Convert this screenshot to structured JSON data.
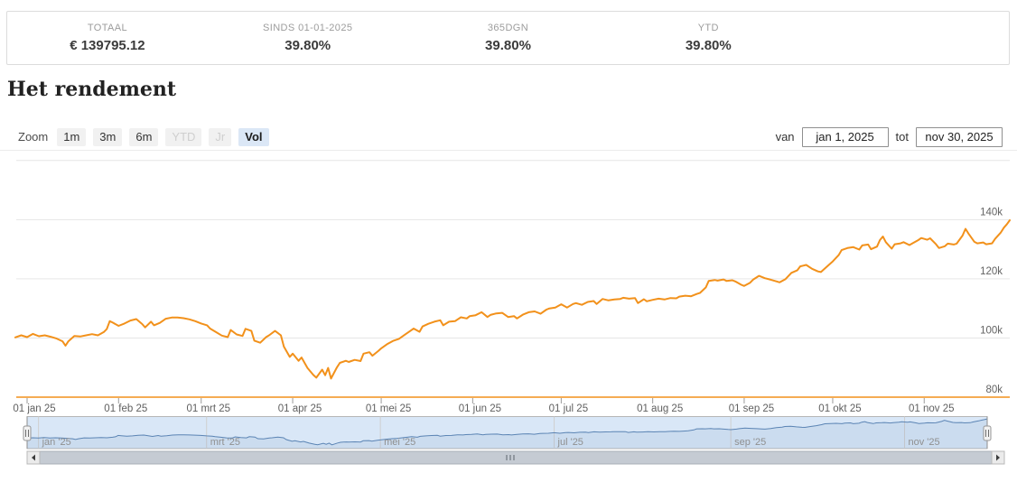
{
  "stats": {
    "items": [
      {
        "label": "TOTAAL",
        "value": "€ 139795.12"
      },
      {
        "label": "SINDS 01-01-2025",
        "value": "39.80%"
      },
      {
        "label": "365DGN",
        "value": "39.80%"
      },
      {
        "label": "YTD",
        "value": "39.80%"
      }
    ]
  },
  "title": "Het rendement",
  "range_selector": {
    "zoom_label": "Zoom",
    "buttons": [
      {
        "label": "1m",
        "state": "normal"
      },
      {
        "label": "3m",
        "state": "normal"
      },
      {
        "label": "6m",
        "state": "normal"
      },
      {
        "label": "YTD",
        "state": "disabled"
      },
      {
        "label": "Jr",
        "state": "disabled"
      },
      {
        "label": "Vol",
        "state": "selected"
      }
    ],
    "from_label": "van",
    "from_value": "jan 1, 2025",
    "to_label": "tot",
    "to_value": "nov 30, 2025"
  },
  "chart_data": {
    "type": "line",
    "title": "Het rendement",
    "unit": "EUR (k)",
    "x_unit": "day offset from 2025-01-01",
    "xrange": [
      "jan 1, 2025",
      "nov 30, 2025"
    ],
    "ylim": [
      80,
      160
    ],
    "grid": "horizontal",
    "legend": "none",
    "series_color": "#f2911b",
    "yticks": [
      {
        "label": "",
        "value": 160
      },
      {
        "label": "140k",
        "value": 140
      },
      {
        "label": "120k",
        "value": 120
      },
      {
        "label": "100k",
        "value": 100
      },
      {
        "label": "80k",
        "value": 80
      }
    ],
    "xticks": [
      {
        "label": "01 jan 25",
        "day": 0
      },
      {
        "label": "01 feb 25",
        "day": 31
      },
      {
        "label": "01 mrt 25",
        "day": 59
      },
      {
        "label": "01 apr 25",
        "day": 90
      },
      {
        "label": "01 mei 25",
        "day": 120
      },
      {
        "label": "01 jun 25",
        "day": 151
      },
      {
        "label": "01 jul 25",
        "day": 181
      },
      {
        "label": "01 aug 25",
        "day": 212
      },
      {
        "label": "01 sep 25",
        "day": 243
      },
      {
        "label": "01 okt 25",
        "day": 273
      },
      {
        "label": "01 nov 25",
        "day": 304
      }
    ],
    "navigator": {
      "line_color": "#5b84b4",
      "mask_color": "#d9e7f7",
      "labels": [
        {
          "label": "jan '25",
          "day": 0
        },
        {
          "label": "mrt '25",
          "day": 59
        },
        {
          "label": "mei '25",
          "day": 120
        },
        {
          "label": "jul '25",
          "day": 181
        },
        {
          "label": "sep '25",
          "day": 243
        },
        {
          "label": "nov '25",
          "day": 304
        }
      ]
    },
    "points": [
      [
        -4,
        100.2
      ],
      [
        -2,
        100.9
      ],
      [
        0,
        100.3
      ],
      [
        2,
        101.4
      ],
      [
        4,
        100.6
      ],
      [
        6,
        100.9
      ],
      [
        8,
        100.4
      ],
      [
        10,
        99.8
      ],
      [
        12,
        98.9
      ],
      [
        13,
        97.4
      ],
      [
        14,
        98.9
      ],
      [
        16,
        100.7
      ],
      [
        18,
        100.5
      ],
      [
        20,
        100.9
      ],
      [
        22,
        101.3
      ],
      [
        24,
        100.9
      ],
      [
        26,
        102.0
      ],
      [
        27,
        103.0
      ],
      [
        28,
        105.7
      ],
      [
        29,
        105.2
      ],
      [
        31,
        104.1
      ],
      [
        33,
        104.9
      ],
      [
        35,
        105.9
      ],
      [
        37,
        106.4
      ],
      [
        39,
        104.7
      ],
      [
        40,
        103.6
      ],
      [
        42,
        105.5
      ],
      [
        43,
        104.3
      ],
      [
        45,
        105.1
      ],
      [
        47,
        106.5
      ],
      [
        49,
        106.9
      ],
      [
        51,
        106.9
      ],
      [
        53,
        106.7
      ],
      [
        55,
        106.3
      ],
      [
        57,
        105.7
      ],
      [
        59,
        104.9
      ],
      [
        61,
        104.3
      ],
      [
        62,
        103.2
      ],
      [
        64,
        102.0
      ],
      [
        66,
        100.8
      ],
      [
        68,
        100.3
      ],
      [
        69,
        102.7
      ],
      [
        71,
        101.2
      ],
      [
        73,
        100.7
      ],
      [
        74,
        103.1
      ],
      [
        76,
        102.4
      ],
      [
        77,
        99.1
      ],
      [
        79,
        98.4
      ],
      [
        81,
        100.3
      ],
      [
        82,
        100.9
      ],
      [
        84,
        102.4
      ],
      [
        86,
        100.9
      ],
      [
        87,
        97.1
      ],
      [
        89,
        93.6
      ],
      [
        90,
        94.7
      ],
      [
        92,
        92.3
      ],
      [
        93,
        93.4
      ],
      [
        95,
        89.9
      ],
      [
        97,
        87.5
      ],
      [
        98,
        86.6
      ],
      [
        100,
        89.3
      ],
      [
        101,
        87.4
      ],
      [
        102,
        89.9
      ],
      [
        103,
        86.3
      ],
      [
        105,
        90.1
      ],
      [
        106,
        91.6
      ],
      [
        108,
        92.3
      ],
      [
        109,
        91.9
      ],
      [
        111,
        92.6
      ],
      [
        113,
        92.2
      ],
      [
        114,
        94.7
      ],
      [
        116,
        95.2
      ],
      [
        117,
        94.0
      ],
      [
        119,
        95.6
      ],
      [
        120,
        96.5
      ],
      [
        122,
        97.9
      ],
      [
        124,
        99.0
      ],
      [
        126,
        99.7
      ],
      [
        128,
        101.1
      ],
      [
        130,
        102.5
      ],
      [
        131,
        103.2
      ],
      [
        133,
        102.1
      ],
      [
        134,
        103.9
      ],
      [
        136,
        104.8
      ],
      [
        138,
        105.5
      ],
      [
        140,
        106.0
      ],
      [
        141,
        104.3
      ],
      [
        143,
        105.5
      ],
      [
        145,
        105.7
      ],
      [
        147,
        107.0
      ],
      [
        149,
        106.6
      ],
      [
        150,
        107.4
      ],
      [
        152,
        107.7
      ],
      [
        154,
        108.7
      ],
      [
        156,
        107.1
      ],
      [
        157,
        107.8
      ],
      [
        159,
        108.3
      ],
      [
        161,
        108.5
      ],
      [
        163,
        107.1
      ],
      [
        165,
        107.4
      ],
      [
        166,
        106.6
      ],
      [
        168,
        107.9
      ],
      [
        170,
        108.7
      ],
      [
        172,
        109.0
      ],
      [
        174,
        108.2
      ],
      [
        176,
        109.6
      ],
      [
        177,
        110.0
      ],
      [
        179,
        110.3
      ],
      [
        181,
        111.4
      ],
      [
        183,
        110.3
      ],
      [
        185,
        111.5
      ],
      [
        186,
        111.8
      ],
      [
        188,
        111.2
      ],
      [
        190,
        112.2
      ],
      [
        192,
        112.5
      ],
      [
        193,
        111.5
      ],
      [
        195,
        113.2
      ],
      [
        197,
        112.7
      ],
      [
        199,
        113.0
      ],
      [
        201,
        113.2
      ],
      [
        202,
        113.6
      ],
      [
        204,
        113.3
      ],
      [
        206,
        113.5
      ],
      [
        207,
        111.8
      ],
      [
        209,
        113.1
      ],
      [
        210,
        112.4
      ],
      [
        212,
        112.9
      ],
      [
        214,
        113.3
      ],
      [
        216,
        113.0
      ],
      [
        218,
        113.5
      ],
      [
        220,
        113.4
      ],
      [
        221,
        114.0
      ],
      [
        223,
        114.3
      ],
      [
        225,
        114.1
      ],
      [
        227,
        114.9
      ],
      [
        228,
        115.2
      ],
      [
        230,
        117.1
      ],
      [
        231,
        119.3
      ],
      [
        233,
        119.6
      ],
      [
        234,
        119.4
      ],
      [
        236,
        119.8
      ],
      [
        237,
        119.3
      ],
      [
        239,
        119.5
      ],
      [
        240,
        119.1
      ],
      [
        242,
        118.0
      ],
      [
        243,
        117.6
      ],
      [
        245,
        118.7
      ],
      [
        246,
        119.7
      ],
      [
        248,
        121.0
      ],
      [
        250,
        120.2
      ],
      [
        252,
        119.7
      ],
      [
        254,
        119.1
      ],
      [
        255,
        118.8
      ],
      [
        257,
        119.9
      ],
      [
        259,
        122.0
      ],
      [
        261,
        122.9
      ],
      [
        262,
        124.2
      ],
      [
        264,
        124.7
      ],
      [
        266,
        123.4
      ],
      [
        268,
        122.5
      ],
      [
        269,
        122.3
      ],
      [
        271,
        124.1
      ],
      [
        273,
        125.9
      ],
      [
        275,
        128.0
      ],
      [
        276,
        129.7
      ],
      [
        278,
        130.4
      ],
      [
        280,
        130.7
      ],
      [
        282,
        129.9
      ],
      [
        283,
        131.3
      ],
      [
        285,
        131.6
      ],
      [
        286,
        130.0
      ],
      [
        288,
        130.9
      ],
      [
        289,
        133.1
      ],
      [
        290,
        134.3
      ],
      [
        291,
        132.4
      ],
      [
        293,
        130.2
      ],
      [
        294,
        131.7
      ],
      [
        296,
        132.0
      ],
      [
        297,
        132.4
      ],
      [
        299,
        131.4
      ],
      [
        300,
        132.0
      ],
      [
        302,
        133.1
      ],
      [
        303,
        133.8
      ],
      [
        305,
        133.2
      ],
      [
        306,
        133.7
      ],
      [
        308,
        131.7
      ],
      [
        309,
        130.4
      ],
      [
        311,
        131.0
      ],
      [
        312,
        131.9
      ],
      [
        314,
        131.6
      ],
      [
        315,
        131.9
      ],
      [
        317,
        134.6
      ],
      [
        318,
        136.9
      ],
      [
        319,
        135.3
      ],
      [
        321,
        132.5
      ],
      [
        322,
        132.0
      ],
      [
        324,
        132.3
      ],
      [
        325,
        131.7
      ],
      [
        327,
        132.0
      ],
      [
        328,
        133.5
      ],
      [
        330,
        135.7
      ],
      [
        331,
        137.3
      ],
      [
        332,
        138.4
      ],
      [
        333,
        139.8
      ]
    ]
  }
}
